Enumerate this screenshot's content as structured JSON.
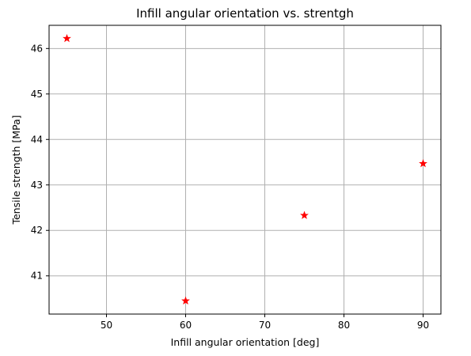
{
  "chart_data": {
    "type": "scatter",
    "title": "Infill angular orientation vs. strentgh",
    "xlabel": "Infill angular orientation [deg]",
    "ylabel": "Tensile strength [MPa]",
    "x": [
      45,
      60,
      75,
      90
    ],
    "y": [
      46.22,
      40.45,
      42.33,
      43.47
    ],
    "xlim": [
      42.75,
      92.25
    ],
    "ylim": [
      40.16,
      46.51
    ],
    "xticks": [
      50,
      60,
      70,
      80,
      90
    ],
    "yticks": [
      41,
      42,
      43,
      44,
      45,
      46
    ],
    "grid": true,
    "marker": "star",
    "marker_color": "#ff0000"
  }
}
